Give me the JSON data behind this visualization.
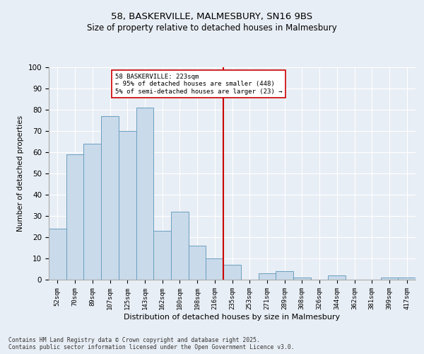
{
  "title_line1": "58, BASKERVILLE, MALMESBURY, SN16 9BS",
  "title_line2": "Size of property relative to detached houses in Malmesbury",
  "xlabel": "Distribution of detached houses by size in Malmesbury",
  "ylabel": "Number of detached properties",
  "bar_labels": [
    "52sqm",
    "70sqm",
    "89sqm",
    "107sqm",
    "125sqm",
    "143sqm",
    "162sqm",
    "180sqm",
    "198sqm",
    "216sqm",
    "235sqm",
    "253sqm",
    "271sqm",
    "289sqm",
    "308sqm",
    "326sqm",
    "344sqm",
    "362sqm",
    "381sqm",
    "399sqm",
    "417sqm"
  ],
  "bar_values": [
    24,
    59,
    64,
    77,
    70,
    81,
    23,
    32,
    16,
    10,
    7,
    0,
    3,
    4,
    1,
    0,
    2,
    0,
    0,
    1,
    1
  ],
  "bar_color": "#c9daea",
  "bar_edge_color": "#6a9fc0",
  "vline_x_index": 9,
  "vline_color": "#cc0000",
  "annotation_text": "58 BASKERVILLE: 223sqm\n← 95% of detached houses are smaller (448)\n5% of semi-detached houses are larger (23) →",
  "annotation_box_color": "#ffffff",
  "annotation_box_edge": "#cc0000",
  "ylim": [
    0,
    100
  ],
  "yticks": [
    0,
    10,
    20,
    30,
    40,
    50,
    60,
    70,
    80,
    90,
    100
  ],
  "background_color": "#e8eef5",
  "grid_color": "#ffffff",
  "footer": "Contains HM Land Registry data © Crown copyright and database right 2025.\nContains public sector information licensed under the Open Government Licence v3.0."
}
